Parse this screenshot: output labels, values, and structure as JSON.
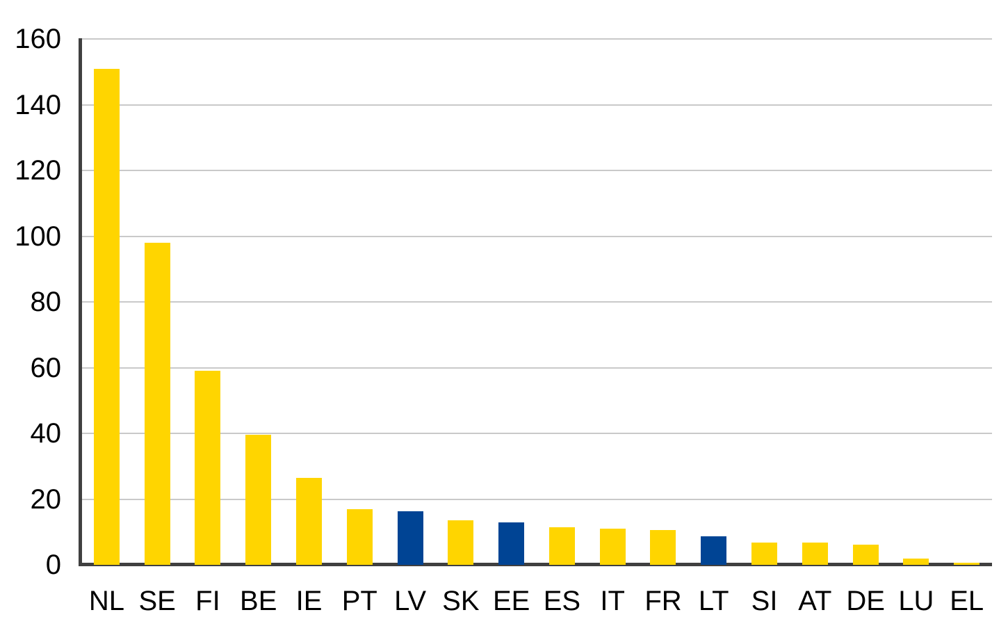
{
  "chart_data": {
    "type": "bar",
    "categories": [
      "NL",
      "SE",
      "FI",
      "BE",
      "IE",
      "PT",
      "LV",
      "SK",
      "EE",
      "ES",
      "IT",
      "FR",
      "LT",
      "SI",
      "AT",
      "DE",
      "LU",
      "EL"
    ],
    "values": [
      151,
      98,
      59,
      39.5,
      26.5,
      17,
      16.3,
      13.5,
      13,
      11.5,
      11,
      10.5,
      8.7,
      6.8,
      6.8,
      6.2,
      1.9,
      0.7
    ],
    "highlighted_categories": [
      "LV",
      "EE",
      "LT"
    ],
    "title": "",
    "xlabel": "",
    "ylabel": "",
    "ylim": [
      0,
      160
    ],
    "yticks": [
      0,
      20,
      40,
      60,
      80,
      100,
      120,
      140,
      160
    ],
    "grid": true,
    "legend": false,
    "colors": {
      "bar_default": "#FFD500",
      "bar_highlight": "#004494",
      "gridline": "#C9C9C9",
      "axis": "#404040",
      "text": "#000000"
    }
  }
}
